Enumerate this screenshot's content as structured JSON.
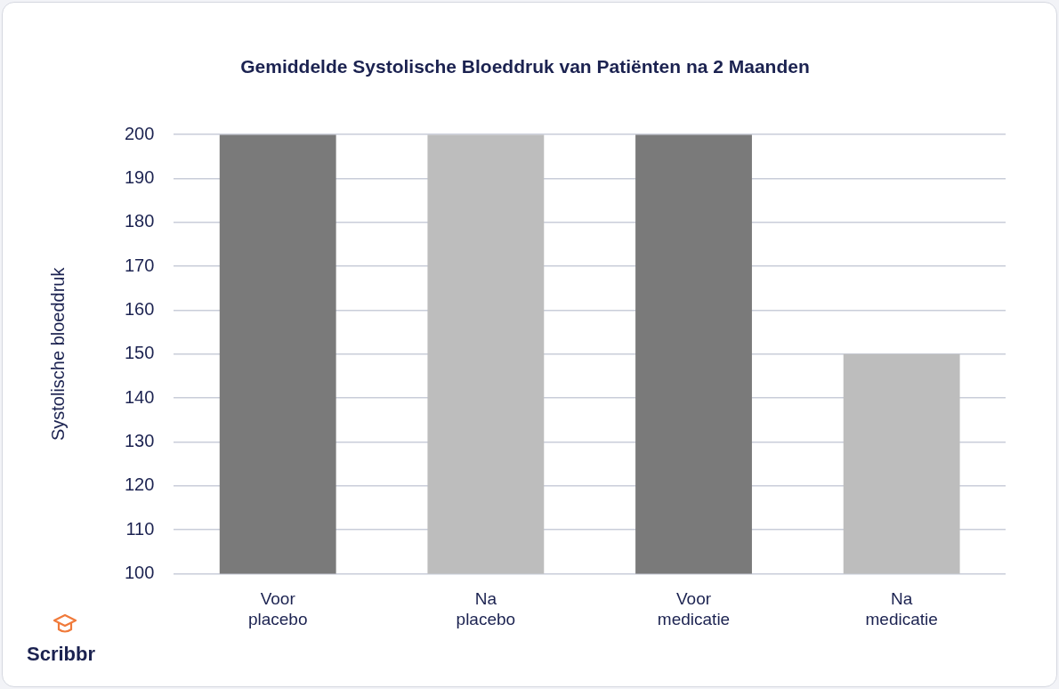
{
  "chart_data": {
    "type": "bar",
    "title": "Gemiddelde Systolische Bloeddruk van Patiënten na 2 Maanden",
    "y_label": "Systolische bloeddruk",
    "categories": [
      "Voor placebo",
      "Na placebo",
      "Voor medicatie",
      "Na medicatie"
    ],
    "values": [
      200,
      200,
      200,
      150
    ],
    "colors": [
      "#7a7a7a",
      "#bdbdbd",
      "#7a7a7a",
      "#bdbdbd"
    ],
    "ylim": [
      100,
      200
    ],
    "yticks": [
      100,
      110,
      120,
      130,
      140,
      150,
      160,
      170,
      180,
      190,
      200
    ],
    "grid": true,
    "annotations": [
      "Scribbr"
    ]
  }
}
